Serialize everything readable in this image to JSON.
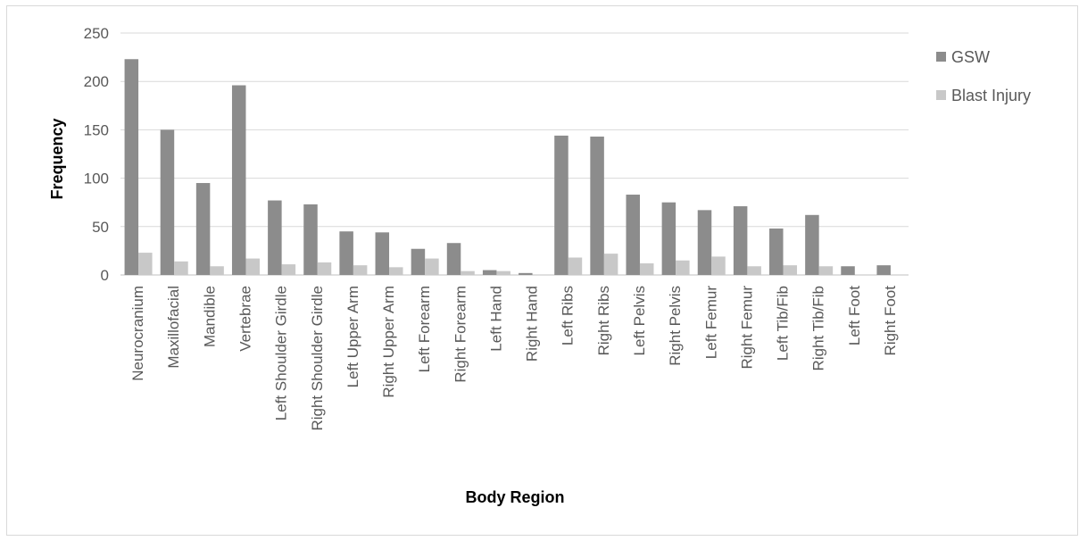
{
  "chart_data": {
    "type": "bar",
    "title": "",
    "xlabel": "Body Region",
    "ylabel": "Frequency",
    "ylim": [
      0,
      250
    ],
    "yticks": [
      0,
      50,
      100,
      150,
      200,
      250
    ],
    "grid": true,
    "legend": "right",
    "categories": [
      "Neurocranium",
      "Maxillofacial",
      "Mandible",
      "Vertebrae",
      "Left Shoulder Girdle",
      "Right Shoulder Girdle",
      "Left Upper Arm",
      "Right Upper Arm",
      "Left Forearm",
      "Right Forearm",
      "Left Hand",
      "Right Hand",
      "Left Ribs",
      "Right Ribs",
      "Left Pelvis",
      "Right Pelvis",
      "Left Femur",
      "Right Femur",
      "Left Tib/Fib",
      "Right Tib/Fib",
      "Left Foot",
      "Right Foot"
    ],
    "series": [
      {
        "name": "GSW",
        "color": "#8c8c8c",
        "values": [
          223,
          150,
          95,
          196,
          77,
          73,
          45,
          44,
          27,
          33,
          5,
          2,
          144,
          143,
          83,
          75,
          67,
          71,
          48,
          62,
          9,
          10
        ]
      },
      {
        "name": "Blast Injury",
        "color": "#c8c8c8",
        "values": [
          23,
          14,
          9,
          17,
          11,
          13,
          10,
          8,
          17,
          4,
          4,
          0,
          18,
          22,
          12,
          15,
          19,
          9,
          10,
          9,
          0,
          0
        ]
      }
    ]
  }
}
